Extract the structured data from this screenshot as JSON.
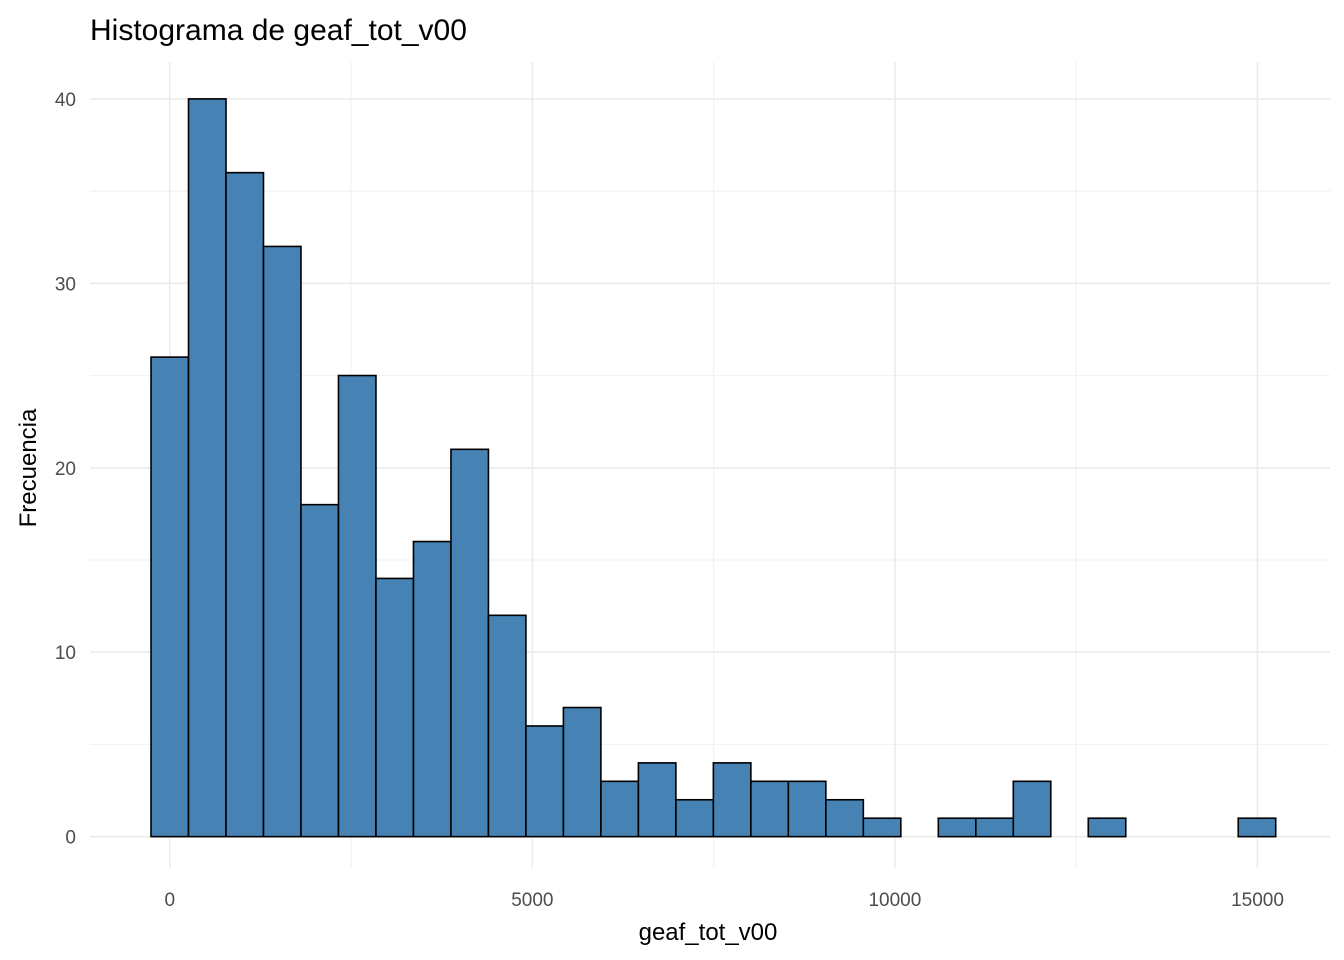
{
  "chart_data": {
    "type": "bar",
    "title": "Histograma de geaf_tot_v00",
    "xlabel": "geaf_tot_v00",
    "ylabel": "Frecuencia",
    "bin_width": 517,
    "bin_start": -258.5,
    "values": [
      26,
      40,
      36,
      32,
      18,
      25,
      14,
      16,
      21,
      12,
      6,
      7,
      3,
      4,
      2,
      4,
      3,
      3,
      2,
      1,
      0,
      1,
      1,
      3,
      0,
      1,
      0,
      0,
      0,
      1
    ],
    "xlim": [
      -1100,
      16000
    ],
    "ylim": [
      -1.7,
      42
    ],
    "x_ticks": [
      0,
      5000,
      10000,
      15000
    ],
    "x_tick_labels": [
      "0",
      "5000",
      "10000",
      "15000"
    ],
    "y_ticks": [
      0,
      10,
      20,
      30,
      40
    ],
    "y_tick_labels": [
      "0",
      "10",
      "20",
      "30",
      "40"
    ],
    "grid": true,
    "fill_color": "#4682b4",
    "edge_color": "#000000"
  }
}
